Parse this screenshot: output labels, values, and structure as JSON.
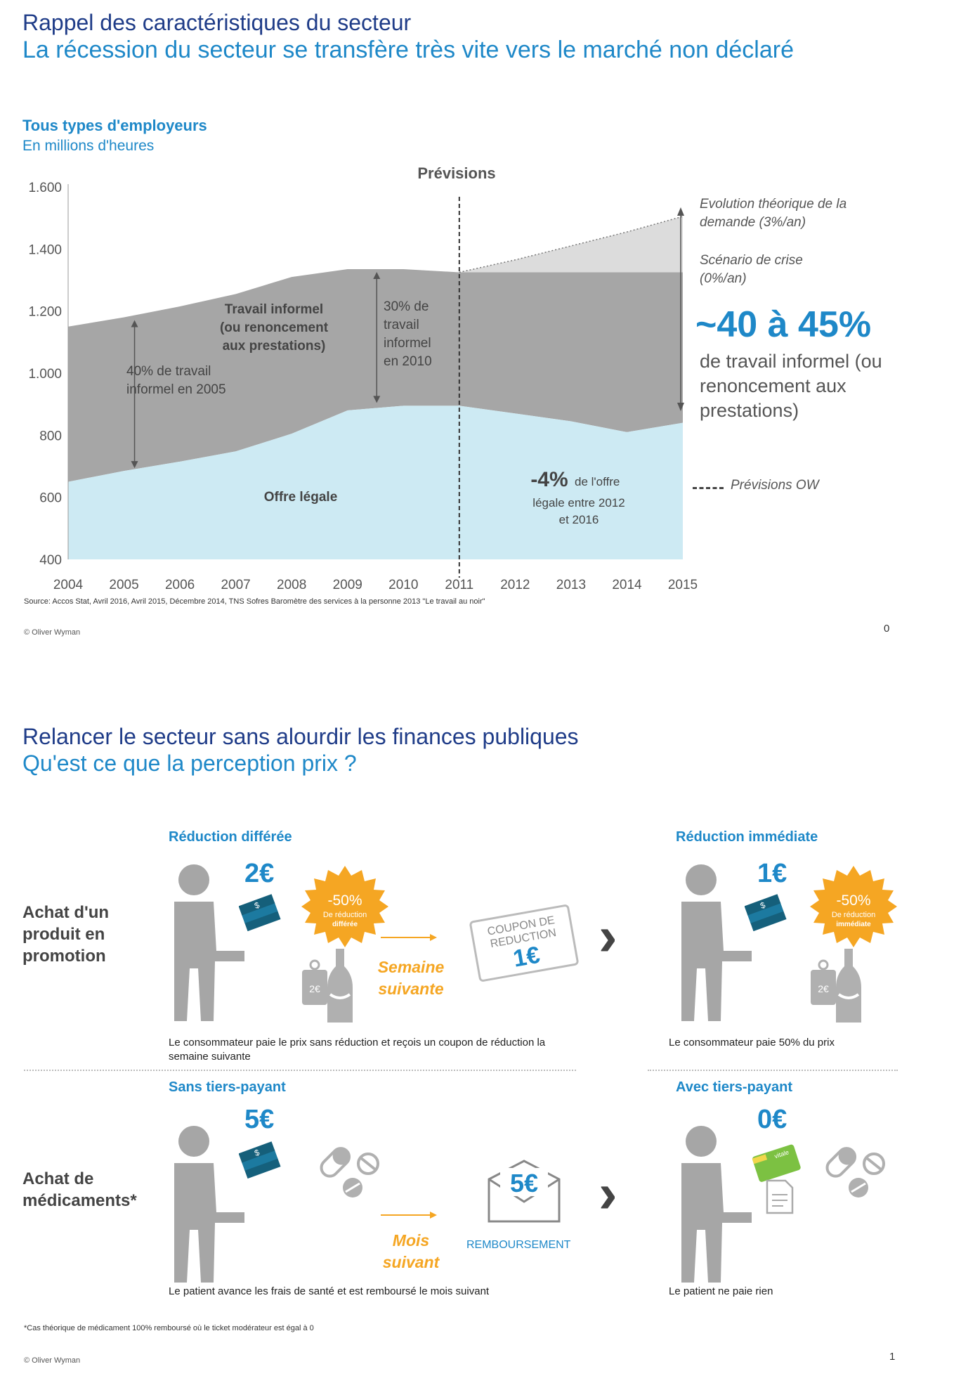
{
  "slide1": {
    "title": "Rappel des caractéristiques  du secteur",
    "subtitle": "La récession  du secteur se transfère très vite vers le marché non déclaré",
    "chart_title": "Tous types d'employeurs",
    "chart_subtitle": "En millions d'heures",
    "forecast_label": "Prévisions",
    "side_notes": {
      "demand": "Evolution théorique de la demande (3%/an)",
      "crisis": "Scénario de crise (0%/an)",
      "big_pct": "~40 à 45%",
      "big_desc": "de travail informel (ou renoncement aux prestations)",
      "legend_forecast": "Prévisions OW"
    },
    "source": "Source: Accos Stat, Avril 2016, Avril 2015, Décembre 2014, TNS Sofres Baromètre des services à la personne 2013 \"Le travail au noir\"",
    "copyright": "© Oliver  Wyman",
    "page_number": "0"
  },
  "chart_data": {
    "type": "area",
    "title": "Tous types d'employeurs",
    "ylabel": "En millions d'heures",
    "x": [
      "2004",
      "2005",
      "2006",
      "2007",
      "2008",
      "2009",
      "2010",
      "2011",
      "2012",
      "2013",
      "2014",
      "2015"
    ],
    "ylim": [
      400,
      1600
    ],
    "yticks": [
      "1.600",
      "1.400",
      "1.200",
      "1.000",
      "800",
      "600",
      "400"
    ],
    "series": [
      {
        "name": "Offre légale",
        "values": [
          650,
          685,
          715,
          748,
          805,
          880,
          895,
          895,
          870,
          845,
          810,
          840
        ]
      },
      {
        "name": "Travail informel (ou renoncement aux prestations)",
        "values": [
          1150,
          1180,
          1215,
          1255,
          1310,
          1335,
          1335,
          1325,
          1325,
          1325,
          1325,
          1325
        ]
      },
      {
        "name": "Evolution théorique de la demande (3%/an)",
        "values": [
          null,
          null,
          null,
          null,
          null,
          null,
          null,
          1325,
          1365,
          1410,
          1455,
          1505
        ]
      }
    ],
    "forecast_start": "2011",
    "annotations": [
      {
        "text": "Travail informel (ou renoncement aux prestations)"
      },
      {
        "text": "40% de travail informel en 2005"
      },
      {
        "text": "30% de travail informel en 2010"
      },
      {
        "text": "Offre légale"
      },
      {
        "text_big": "-4%",
        "text": "de l'offre légale entre 2012 et 2016"
      }
    ],
    "colors": {
      "legal": "#cdeaf3",
      "informal": "#a6a6a6",
      "demand": "#dcdcdc"
    }
  },
  "slide2": {
    "title": "Relancer le secteur sans alourdir les finances publiques",
    "subtitle": "Qu'est ce que la perception prix ?",
    "row1": {
      "label": "Achat d'un produit en promotion",
      "left_header": "Réduction  différée",
      "left_price": "2€",
      "left_badge_pct": "-50%",
      "left_badge_line1": "De réduction",
      "left_badge_line2": "différée",
      "coupon_line1": "COUPON DE",
      "coupon_line2": "REDUCTION",
      "coupon_value": "1€",
      "delay": "Semaine suivante",
      "tag_price": "2€",
      "left_caption": "Le consommateur  paie  le prix sans réduction  et reçois un coupon  de réduction  la semaine  suivante",
      "right_header": "Réduction  immédiate",
      "right_price": "1€",
      "right_badge_pct": "-50%",
      "right_badge_line1": "De réduction",
      "right_badge_line2": "immédiate",
      "right_caption": "Le consommateur  paie  50% du prix"
    },
    "row2": {
      "label": "Achat de médicaments*",
      "left_header": "Sans tiers-payant",
      "left_price": "5€",
      "envelope_value": "5€",
      "refund": "REMBOURSEMENT",
      "delay": "Mois suivant",
      "left_caption": "Le patient avance les frais de santé et est remboursé  le mois suivant",
      "right_header": "Avec tiers-payant",
      "right_price": "0€",
      "card_text": "vitale",
      "right_caption": "Le patient ne paie rien"
    },
    "footnote": "*Cas théorique  de médicament 100%  remboursé où le ticket modérateur est égal à 0",
    "copyright": "© Oliver  Wyman",
    "page_number": "1"
  }
}
